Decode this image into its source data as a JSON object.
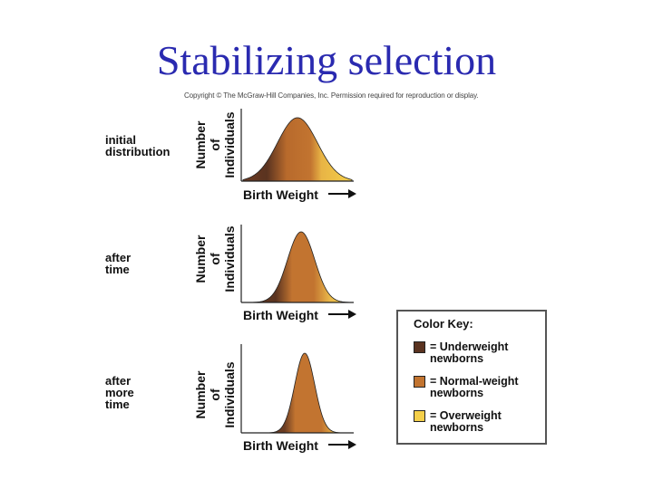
{
  "title": "Stabilizing selection",
  "copyright": "Copyright © The McGraw-Hill Companies, Inc. Permission required for reproduction or display.",
  "panels": [
    {
      "label": [
        "initial",
        "distribution"
      ],
      "ylabel": [
        "Number",
        "of",
        "Individuals"
      ],
      "xlabel": "Birth Weight",
      "spread": "wide"
    },
    {
      "label": [
        "after",
        "time"
      ],
      "ylabel": [
        "Number",
        "of",
        "Individuals"
      ],
      "xlabel": "Birth Weight",
      "spread": "medium"
    },
    {
      "label": [
        "after",
        "more",
        "time"
      ],
      "ylabel": [
        "Number",
        "of",
        "Individuals"
      ],
      "xlabel": "Birth Weight",
      "spread": "narrow"
    }
  ],
  "key": {
    "title": "Color Key:",
    "items": [
      {
        "line1": "= Underweight",
        "line2": "newborns",
        "color": "#5a3320"
      },
      {
        "line1": "= Normal-weight",
        "line2": "newborns",
        "color": "#c27430"
      },
      {
        "line1": "= Overweight",
        "line2": "newborns",
        "color": "#f4cf4a"
      }
    ]
  },
  "colors": {
    "title": "#2a2ab0",
    "underweight": "#5a3320",
    "normal": "#c27430",
    "overweight": "#f4cf4a"
  }
}
